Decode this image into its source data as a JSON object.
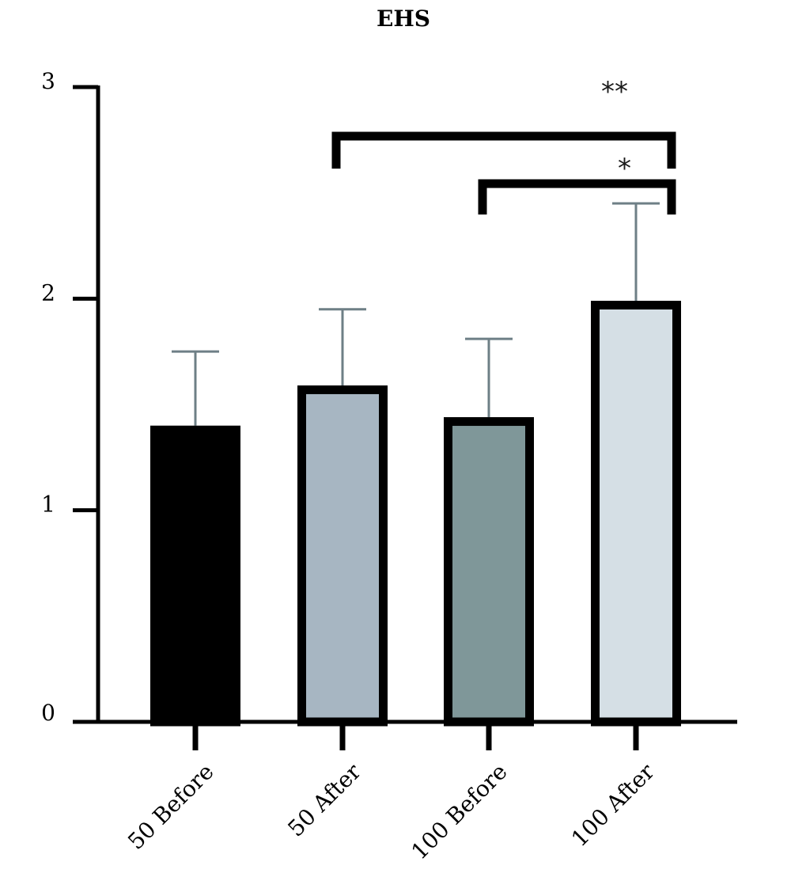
{
  "chart_data": {
    "type": "bar",
    "title": "EHS",
    "xlabel": "",
    "ylabel": "",
    "ylim": [
      0,
      3
    ],
    "yticks": [
      0,
      1,
      2,
      3
    ],
    "categories": [
      "50 Before",
      "50 After",
      "100 Before",
      "100 After"
    ],
    "values": [
      1.4,
      1.59,
      1.44,
      1.99
    ],
    "errors": [
      0.35,
      0.36,
      0.37,
      0.46
    ],
    "colors": [
      "#000000",
      "#a7b6c2",
      "#7f9799",
      "#d5dfe5"
    ],
    "grid": false,
    "legend": "none",
    "significance": [
      {
        "from": 1,
        "to": 3,
        "label": "**"
      },
      {
        "from": 2,
        "to": 3,
        "label": "*"
      }
    ]
  }
}
